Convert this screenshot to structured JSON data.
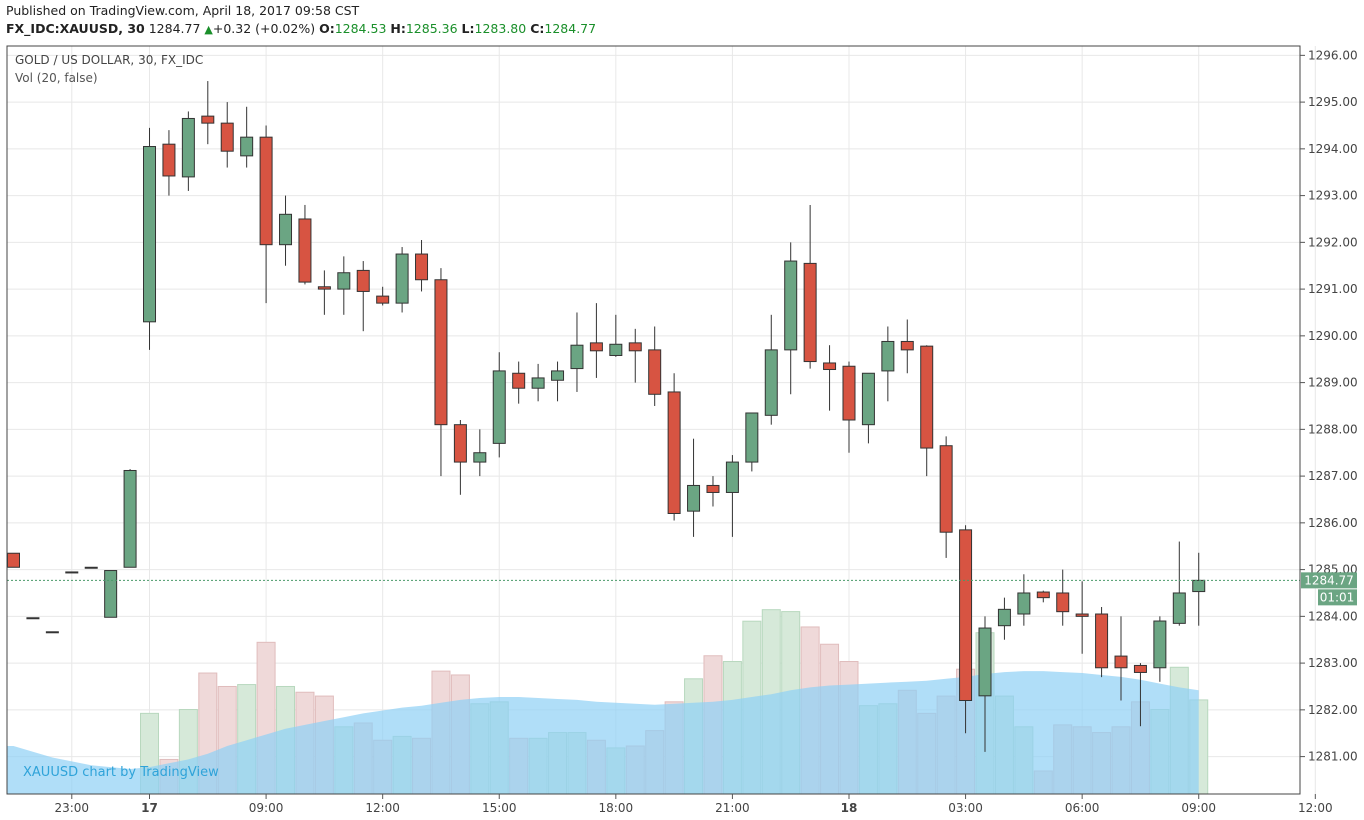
{
  "header": {
    "published": "Published on TradingView.com, April 18, 2017 09:58 CST",
    "symbol": "FX_IDC:XAUUSD, 30",
    "last": "1284.77",
    "change": "+0.32 (+0.02%)",
    "o_label": "O:",
    "o_value": "1284.53",
    "h_label": "H:",
    "h_value": "1285.36",
    "l_label": "L:",
    "l_value": "1283.80",
    "c_label": "C:",
    "c_value": "1284.77"
  },
  "legend": {
    "title": "GOLD / US DOLLAR, 30, FX_IDC",
    "vol": "Vol (20, false)"
  },
  "watermark": "XAUUSD chart by TradingView",
  "price_tag": {
    "price": "1284.77",
    "countdown": "01:01"
  },
  "colors": {
    "up": "#6ba583",
    "down": "#d75442",
    "vol_up": "#d6e9d9",
    "vol_down": "#efd9d9",
    "vol_ma": "#8fd0f5",
    "grid": "#e8e8e8",
    "price_tag": "#6ba583"
  },
  "chart_data": {
    "type": "candlestick",
    "title": "GOLD / US DOLLAR, 30, FX_IDC",
    "interval": "30",
    "ylim": [
      1280.2,
      1296.2
    ],
    "y_ticks": [
      "1281.00",
      "1282.00",
      "1283.00",
      "1284.00",
      "1285.00",
      "1286.00",
      "1287.00",
      "1288.00",
      "1289.00",
      "1290.00",
      "1291.00",
      "1292.00",
      "1293.00",
      "1294.00",
      "1295.00",
      "1296.00"
    ],
    "x_ticks": [
      "23:00",
      "17",
      "09:00",
      "12:00",
      "15:00",
      "18:00",
      "21:00",
      "18",
      "03:00",
      "06:00",
      "09:00",
      "12:00"
    ],
    "candles": [
      {
        "o": 1285.35,
        "h": 1285.35,
        "l": 1285.05,
        "c": 1285.05
      },
      {
        "o": 1283.97,
        "h": 1283.97,
        "l": 1283.97,
        "c": 1283.97
      },
      {
        "o": 1283.67,
        "h": 1283.67,
        "l": 1283.67,
        "c": 1283.67
      },
      {
        "o": 1284.95,
        "h": 1284.95,
        "l": 1284.95,
        "c": 1284.95
      },
      {
        "o": 1285.05,
        "h": 1285.05,
        "l": 1285.05,
        "c": 1285.05
      },
      {
        "o": 1283.98,
        "h": 1284.98,
        "l": 1283.98,
        "c": 1284.98
      },
      {
        "o": 1285.05,
        "h": 1287.15,
        "l": 1285.05,
        "c": 1287.12
      },
      {
        "o": 1290.3,
        "h": 1294.45,
        "l": 1289.7,
        "c": 1294.05
      },
      {
        "o": 1294.1,
        "h": 1294.4,
        "l": 1293.0,
        "c": 1293.42
      },
      {
        "o": 1293.4,
        "h": 1294.8,
        "l": 1293.1,
        "c": 1294.65
      },
      {
        "o": 1294.7,
        "h": 1295.45,
        "l": 1294.1,
        "c": 1294.55
      },
      {
        "o": 1294.55,
        "h": 1295.0,
        "l": 1293.6,
        "c": 1293.95
      },
      {
        "o": 1293.85,
        "h": 1294.9,
        "l": 1293.6,
        "c": 1294.25
      },
      {
        "o": 1294.25,
        "h": 1294.5,
        "l": 1290.7,
        "c": 1291.95
      },
      {
        "o": 1291.95,
        "h": 1293.0,
        "l": 1291.5,
        "c": 1292.6
      },
      {
        "o": 1292.5,
        "h": 1292.8,
        "l": 1291.1,
        "c": 1291.15
      },
      {
        "o": 1291.05,
        "h": 1291.4,
        "l": 1290.45,
        "c": 1291.0
      },
      {
        "o": 1291.0,
        "h": 1291.7,
        "l": 1290.45,
        "c": 1291.35
      },
      {
        "o": 1291.4,
        "h": 1291.6,
        "l": 1290.1,
        "c": 1290.95
      },
      {
        "o": 1290.85,
        "h": 1291.05,
        "l": 1290.65,
        "c": 1290.7
      },
      {
        "o": 1290.7,
        "h": 1291.9,
        "l": 1290.5,
        "c": 1291.75
      },
      {
        "o": 1291.75,
        "h": 1292.05,
        "l": 1290.95,
        "c": 1291.2
      },
      {
        "o": 1291.2,
        "h": 1291.45,
        "l": 1287.0,
        "c": 1288.1
      },
      {
        "o": 1288.1,
        "h": 1288.2,
        "l": 1286.6,
        "c": 1287.3
      },
      {
        "o": 1287.3,
        "h": 1288.0,
        "l": 1287.0,
        "c": 1287.5
      },
      {
        "o": 1287.7,
        "h": 1289.65,
        "l": 1287.4,
        "c": 1289.25
      },
      {
        "o": 1289.2,
        "h": 1289.45,
        "l": 1288.55,
        "c": 1288.88
      },
      {
        "o": 1288.88,
        "h": 1289.4,
        "l": 1288.6,
        "c": 1289.1
      },
      {
        "o": 1289.05,
        "h": 1289.45,
        "l": 1288.6,
        "c": 1289.25
      },
      {
        "o": 1289.3,
        "h": 1290.5,
        "l": 1288.8,
        "c": 1289.8
      },
      {
        "o": 1289.85,
        "h": 1290.7,
        "l": 1289.1,
        "c": 1289.68
      },
      {
        "o": 1289.58,
        "h": 1290.45,
        "l": 1289.55,
        "c": 1289.82
      },
      {
        "o": 1289.85,
        "h": 1290.15,
        "l": 1289.0,
        "c": 1289.68
      },
      {
        "o": 1289.7,
        "h": 1290.2,
        "l": 1288.5,
        "c": 1288.75
      },
      {
        "o": 1288.8,
        "h": 1289.2,
        "l": 1286.05,
        "c": 1286.2
      },
      {
        "o": 1286.25,
        "h": 1287.8,
        "l": 1285.7,
        "c": 1286.8
      },
      {
        "o": 1286.8,
        "h": 1287.0,
        "l": 1286.35,
        "c": 1286.65
      },
      {
        "o": 1286.65,
        "h": 1287.45,
        "l": 1285.7,
        "c": 1287.3
      },
      {
        "o": 1287.3,
        "h": 1288.3,
        "l": 1287.1,
        "c": 1288.35
      },
      {
        "o": 1288.3,
        "h": 1290.45,
        "l": 1288.1,
        "c": 1289.7
      },
      {
        "o": 1289.7,
        "h": 1292.0,
        "l": 1288.75,
        "c": 1291.6
      },
      {
        "o": 1291.55,
        "h": 1292.8,
        "l": 1289.3,
        "c": 1289.45
      },
      {
        "o": 1289.42,
        "h": 1289.8,
        "l": 1288.4,
        "c": 1289.28
      },
      {
        "o": 1289.35,
        "h": 1289.45,
        "l": 1287.5,
        "c": 1288.2
      },
      {
        "o": 1288.1,
        "h": 1289.2,
        "l": 1287.7,
        "c": 1289.2
      },
      {
        "o": 1289.25,
        "h": 1290.2,
        "l": 1288.6,
        "c": 1289.88
      },
      {
        "o": 1289.88,
        "h": 1290.35,
        "l": 1289.2,
        "c": 1289.7
      },
      {
        "o": 1289.78,
        "h": 1289.8,
        "l": 1287.0,
        "c": 1287.6
      },
      {
        "o": 1287.65,
        "h": 1287.85,
        "l": 1285.25,
        "c": 1285.8
      },
      {
        "o": 1285.85,
        "h": 1285.95,
        "l": 1281.5,
        "c": 1282.2
      },
      {
        "o": 1282.3,
        "h": 1284.0,
        "l": 1281.1,
        "c": 1283.75
      },
      {
        "o": 1283.8,
        "h": 1284.4,
        "l": 1283.5,
        "c": 1284.15
      },
      {
        "o": 1284.05,
        "h": 1284.9,
        "l": 1283.8,
        "c": 1284.5
      },
      {
        "o": 1284.52,
        "h": 1284.55,
        "l": 1284.3,
        "c": 1284.4
      },
      {
        "o": 1284.5,
        "h": 1285.0,
        "l": 1283.8,
        "c": 1284.1
      },
      {
        "o": 1284.05,
        "h": 1284.75,
        "l": 1283.2,
        "c": 1284.0
      },
      {
        "o": 1284.05,
        "h": 1284.2,
        "l": 1282.7,
        "c": 1282.9
      },
      {
        "o": 1283.15,
        "h": 1284.0,
        "l": 1282.2,
        "c": 1282.9
      },
      {
        "o": 1282.95,
        "h": 1283.0,
        "l": 1281.65,
        "c": 1282.8
      },
      {
        "o": 1282.9,
        "h": 1284.0,
        "l": 1282.6,
        "c": 1283.9
      },
      {
        "o": 1283.85,
        "h": 1285.6,
        "l": 1283.8,
        "c": 1284.5
      },
      {
        "o": 1284.53,
        "h": 1285.36,
        "l": 1283.8,
        "c": 1284.77
      }
    ],
    "volume": {
      "ylim": [
        0,
        10
      ],
      "values": [
        0,
        0,
        0,
        0,
        0,
        0,
        0,
        4.2,
        1.8,
        4.4,
        6.3,
        5.6,
        5.7,
        7.9,
        5.6,
        5.3,
        5.1,
        3.5,
        3.7,
        2.8,
        3.0,
        2.9,
        6.4,
        6.2,
        4.7,
        4.8,
        2.9,
        2.9,
        3.2,
        3.2,
        2.8,
        2.4,
        2.5,
        3.3,
        4.8,
        6.0,
        7.2,
        6.9,
        9.0,
        9.6,
        9.5,
        8.7,
        7.8,
        6.9,
        4.6,
        4.7,
        5.4,
        4.2,
        5.1,
        6.5,
        8.4,
        5.1,
        3.5,
        1.2,
        3.6,
        3.5,
        3.2,
        3.5,
        4.8,
        4.4,
        6.6,
        4.9
      ],
      "ma": [
        2.5,
        2.2,
        1.9,
        1.7,
        1.5,
        1.4,
        1.3,
        1.4,
        1.6,
        1.8,
        2.1,
        2.5,
        2.8,
        3.1,
        3.4,
        3.6,
        3.8,
        4.0,
        4.2,
        4.35,
        4.5,
        4.6,
        4.75,
        4.9,
        5.0,
        5.05,
        5.05,
        5.0,
        4.95,
        4.9,
        4.8,
        4.75,
        4.7,
        4.65,
        4.7,
        4.75,
        4.8,
        4.9,
        5.05,
        5.2,
        5.4,
        5.55,
        5.65,
        5.7,
        5.75,
        5.8,
        5.85,
        5.9,
        6.0,
        6.1,
        6.25,
        6.35,
        6.4,
        6.4,
        6.35,
        6.3,
        6.2,
        6.1,
        5.95,
        5.75,
        5.55,
        5.4
      ]
    }
  }
}
